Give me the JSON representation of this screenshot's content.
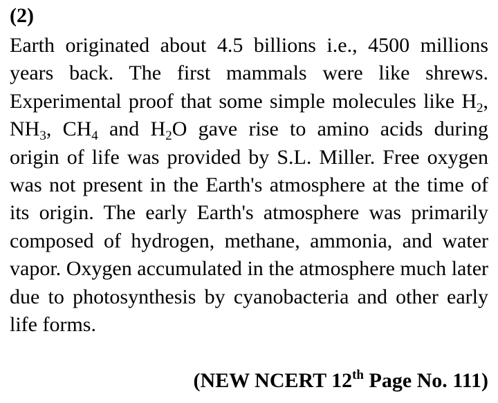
{
  "question": {
    "label": "(2)"
  },
  "answer": {
    "t1": "Earth originated about 4.5 billions i.e., 4500 millions years back. The first mammals were like shrews. Experimental proof that some simple molecules like H",
    "s1": "2",
    "t2": ", NH",
    "s2": "3",
    "t3": ", CH",
    "s3": "4",
    "t4": " and H",
    "s4": "2",
    "t5": "O gave rise to amino acids during origin of life was provided by S.L. Miller. Free oxygen was not present in the Earth's atmosphere at the time of its origin. The early Earth's atmosphere was primarily composed of hydrogen, methane, ammonia, and water vapor. Oxygen accumulated in the atmosphere much later due to photosynthesis by cyanobacteria and other early life forms."
  },
  "reference": {
    "prefix": "(NEW NCERT 12",
    "sup": "th",
    "suffix": " Page No. 111)"
  }
}
